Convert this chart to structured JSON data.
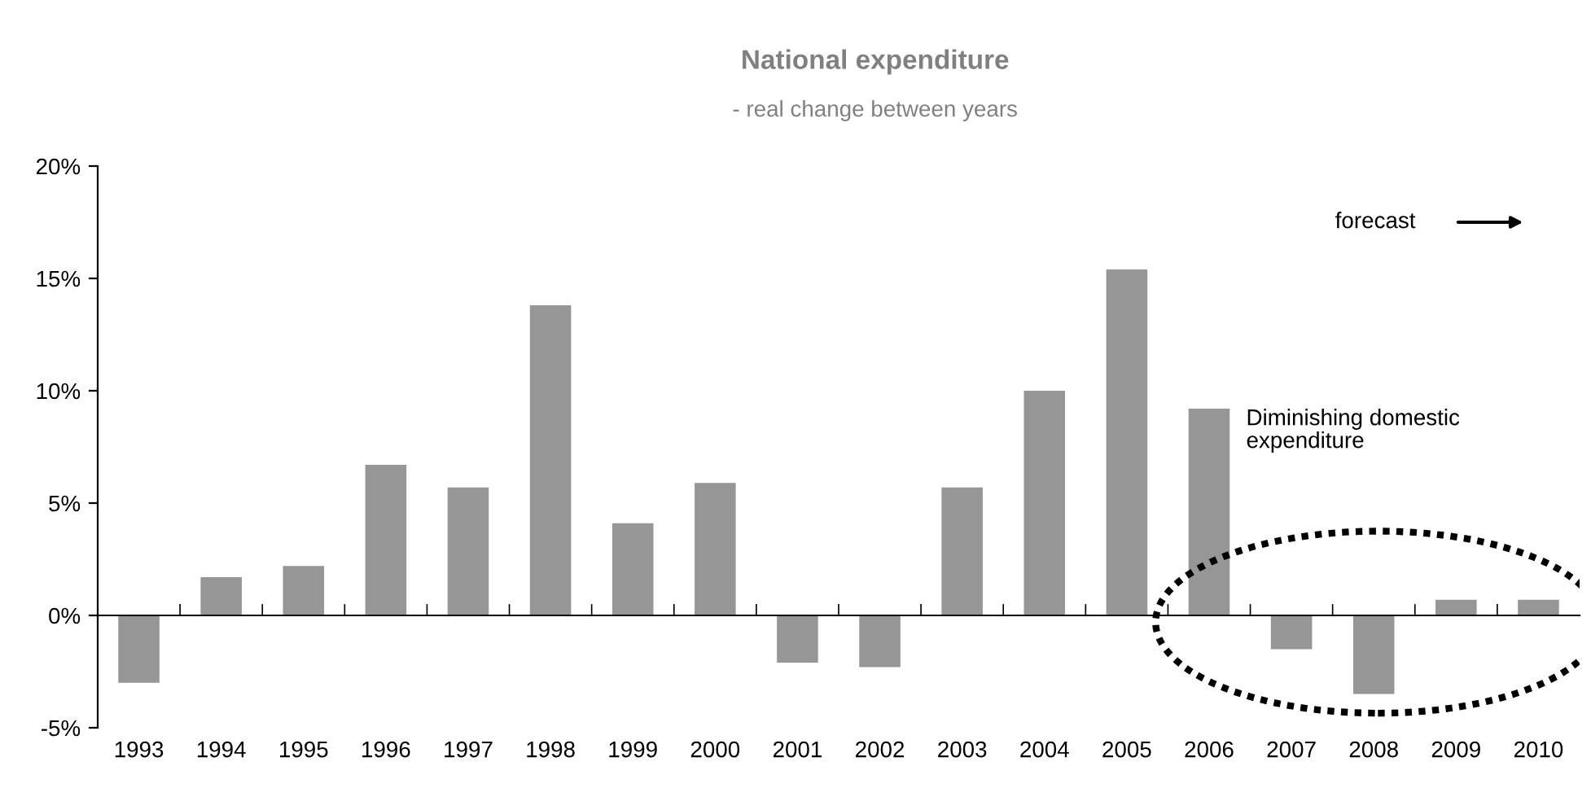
{
  "chart_data": {
    "type": "bar",
    "title": "National expenditure",
    "subtitle": "- real change between years",
    "categories": [
      "1993",
      "1994",
      "1995",
      "1996",
      "1997",
      "1998",
      "1999",
      "2000",
      "2001",
      "2002",
      "2003",
      "2004",
      "2005",
      "2006",
      "2007",
      "2008",
      "2009",
      "2010"
    ],
    "values": [
      -3.0,
      1.7,
      2.2,
      6.7,
      5.7,
      13.8,
      4.1,
      5.9,
      -2.1,
      -2.3,
      5.7,
      10.0,
      15.4,
      9.2,
      -1.5,
      -3.5,
      0.7,
      0.7
    ],
    "color": "#969696",
    "ylim": [
      -5,
      20
    ],
    "yticks": [
      {
        "value": -5,
        "label": "-5%"
      },
      {
        "value": 0,
        "label": "0%"
      },
      {
        "value": 5,
        "label": "5%"
      },
      {
        "value": 10,
        "label": "10%"
      },
      {
        "value": 15,
        "label": "15%"
      },
      {
        "value": 20,
        "label": "20%"
      }
    ],
    "annotations": [
      "forecast",
      "Diminishing domestic expenditure"
    ]
  }
}
